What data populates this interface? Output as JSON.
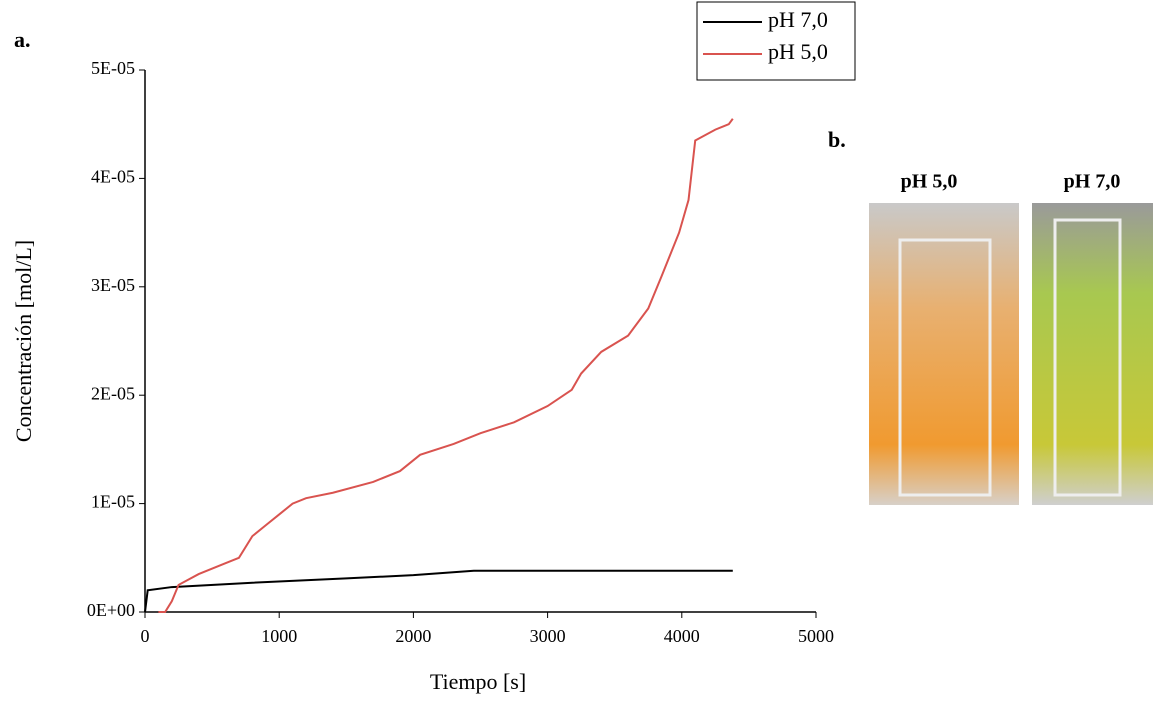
{
  "panel_labels": [
    "a.",
    "b."
  ],
  "photo_captions": [
    "pH 5,0",
    "pH 7,0"
  ],
  "chart_data": {
    "type": "line",
    "x_label": "Tiempo [s]",
    "y_label": "Concentración [mol/L]",
    "xlim": [
      0,
      5000
    ],
    "xticks": [
      0,
      1000,
      2000,
      3000,
      4000,
      5000
    ],
    "ylim": [
      0,
      5e-05
    ],
    "yticks": [
      {
        "value": 0,
        "label": "0E+00"
      },
      {
        "value": 1e-05,
        "label": "1E-05"
      },
      {
        "value": 2e-05,
        "label": "2E-05"
      },
      {
        "value": 3e-05,
        "label": "3E-05"
      },
      {
        "value": 4e-05,
        "label": "4E-05"
      },
      {
        "value": 5e-05,
        "label": "5E-05"
      }
    ],
    "legend": "top-right",
    "series": [
      {
        "name": "pH 7,0",
        "color": "#000000",
        "x": [
          0,
          20,
          200,
          800,
          1500,
          2000,
          2450,
          3000,
          4380
        ],
        "values": [
          0,
          2e-06,
          2.3e-06,
          2.7e-06,
          3.1e-06,
          3.4e-06,
          3.8e-06,
          3.8e-06,
          3.8e-06
        ]
      },
      {
        "name": "pH 5,0",
        "color": "#d9534f",
        "x": [
          100,
          150,
          200,
          250,
          400,
          600,
          700,
          800,
          900,
          1000,
          1100,
          1200,
          1400,
          1700,
          1900,
          2050,
          2300,
          2500,
          2750,
          3000,
          3180,
          3250,
          3400,
          3600,
          3750,
          3850,
          3980,
          4050,
          4100,
          4250,
          4350,
          4380
        ],
        "values": [
          0,
          0,
          1e-06,
          2.5e-06,
          3.5e-06,
          4.5e-06,
          5e-06,
          7e-06,
          8e-06,
          9e-06,
          1e-05,
          1.05e-05,
          1.1e-05,
          1.2e-05,
          1.3e-05,
          1.45e-05,
          1.55e-05,
          1.65e-05,
          1.75e-05,
          1.9e-05,
          2.05e-05,
          2.2e-05,
          2.4e-05,
          2.55e-05,
          2.8e-05,
          3.1e-05,
          3.5e-05,
          3.8e-05,
          4.35e-05,
          4.45e-05,
          4.5e-05,
          4.55e-05
        ]
      }
    ]
  }
}
